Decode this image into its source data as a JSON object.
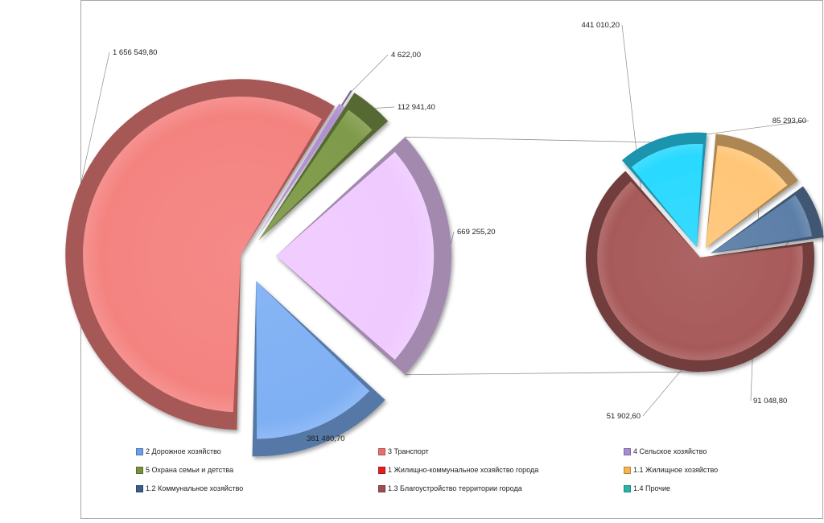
{
  "chart_data": {
    "type": "pie",
    "subtype": "pie-of-pie",
    "main": {
      "slices": [
        {
          "name": "3 Транспорт",
          "value": 1656549.8,
          "label": "1 656 549,80",
          "color": "#f48380"
        },
        {
          "name": "4 Сельское хозяйство",
          "value": 4622.0,
          "label": "4 622,00",
          "color": "#b08fd1"
        },
        {
          "name": "5 Охрана семьи и детства",
          "value": 112941.4,
          "label": "112 941,40",
          "color": "#7f9a4a"
        },
        {
          "name": "1 Жилищно-коммунальное  хозяйство города",
          "value": 669255.2,
          "label": "669 255,20",
          "color": "#efcaff"
        },
        {
          "name": "2 Дорожное хозяйство",
          "value": 381480.7,
          "label": "381 480,70",
          "color": "#7fb0f4"
        }
      ]
    },
    "secondary": {
      "slices": [
        {
          "name": "1.3 Благоустройство территории города",
          "value": 441010.2,
          "label": "441 010,20",
          "color": "#a85a5a"
        },
        {
          "name": "1.4 Прочие",
          "value": 85293.6,
          "label": "85 293,60",
          "color": "#2ad9ff"
        },
        {
          "name": "1.1 Жилищное хозяйство",
          "value": 91048.8,
          "label": "91 048,80",
          "color": "#ffc678"
        },
        {
          "name": "1.2 Коммунальное хозяйство",
          "value": 51902.6,
          "label": "51 902,60",
          "color": "#5c7fa8"
        }
      ]
    },
    "legend_position": "bottom",
    "title": ""
  },
  "legend": [
    {
      "text": "2 Дорожное хозяйство",
      "color": "#6d9eea"
    },
    {
      "text": "3 Транспорт",
      "color": "#e8706c"
    },
    {
      "text": "4 Сельское хозяйство",
      "color": "#a88bd2"
    },
    {
      "text": "5 Охрана семьи и детства",
      "color": "#78913f"
    },
    {
      "text": "1 Жилищно-коммунальное  хозяйство города",
      "color": "#e02020"
    },
    {
      "text": "1.1 Жилищное хозяйство",
      "color": "#f7b450"
    },
    {
      "text": "1.2 Коммунальное хозяйство",
      "color": "#3d5c8a"
    },
    {
      "text": "1.3 Благоустройство территории города",
      "color": "#9c4f4f"
    },
    {
      "text": "1.4 Прочие",
      "color": "#28b4a8"
    }
  ]
}
